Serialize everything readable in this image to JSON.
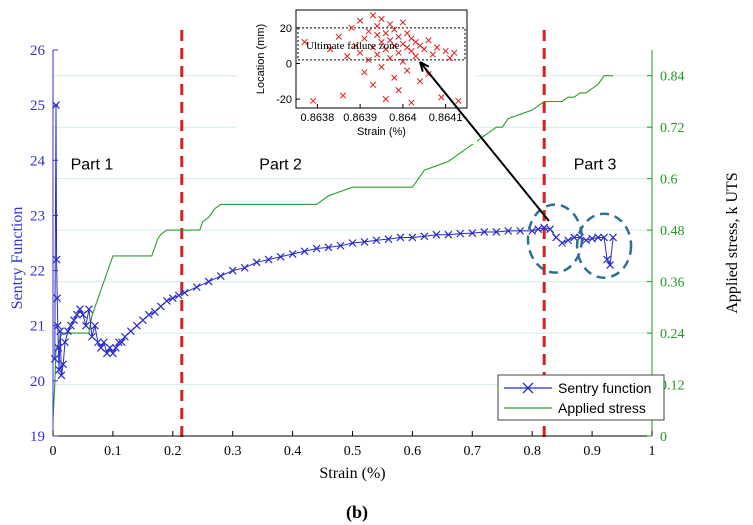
{
  "caption": "(b)",
  "chart_data": [
    {
      "type": "line",
      "xlabel": "Strain (%)",
      "ylabel": "Sentry Function",
      "y2label": "Applied  stress,  k UTS",
      "xlim": [
        0,
        1
      ],
      "ylim": [
        19,
        26
      ],
      "y2lim": [
        0,
        0.9
      ],
      "x_ticks": [
        0,
        0.1,
        0.2,
        0.3,
        0.4,
        0.5,
        0.6,
        0.7,
        0.8,
        0.9,
        1
      ],
      "x_tick_labels": [
        "0",
        "0.1",
        "0.2",
        "0.3",
        "0.4",
        "0.5",
        "0.6",
        "0.7",
        "0.8",
        "0.9",
        "1"
      ],
      "y_ticks": [
        19,
        20,
        21,
        22,
        23,
        24,
        25,
        26
      ],
      "y_tick_labels": [
        "19",
        "20",
        "21",
        "22",
        "23",
        "24",
        "25",
        "26"
      ],
      "y2_ticks": [
        0,
        0.12,
        0.24,
        0.36,
        0.48,
        0.6,
        0.72,
        0.84
      ],
      "y2_tick_labels": [
        "0",
        "0.12",
        "0.24",
        "0.36",
        "0.48",
        "0.6",
        "0.72",
        "0.84"
      ],
      "grid": "horizontal",
      "legend": "bottom-right",
      "part_labels": [
        "Part 1",
        "Part 2",
        "Part 3"
      ],
      "part_boundaries": [
        0.215,
        0.82
      ],
      "colors": {
        "sentry": "#2a2acc",
        "stress": "#2e9e2e",
        "boundary": "#d42020",
        "circle": "#2f6f8f",
        "axis_left": "#3333cc",
        "axis_right": "#1f9a1f"
      },
      "series": [
        {
          "name": "Sentry function",
          "axis": "left",
          "marker": "x",
          "x": [
            0.003,
            0.005,
            0.006,
            0.007,
            0.008,
            0.009,
            0.01,
            0.012,
            0.014,
            0.017,
            0.02,
            0.025,
            0.03,
            0.035,
            0.04,
            0.045,
            0.05,
            0.055,
            0.06,
            0.065,
            0.07,
            0.075,
            0.08,
            0.085,
            0.09,
            0.095,
            0.1,
            0.105,
            0.11,
            0.115,
            0.12,
            0.13,
            0.14,
            0.15,
            0.16,
            0.17,
            0.18,
            0.19,
            0.2,
            0.21,
            0.22,
            0.24,
            0.26,
            0.28,
            0.3,
            0.32,
            0.34,
            0.36,
            0.38,
            0.4,
            0.42,
            0.44,
            0.46,
            0.48,
            0.5,
            0.52,
            0.54,
            0.56,
            0.58,
            0.6,
            0.62,
            0.64,
            0.66,
            0.68,
            0.7,
            0.72,
            0.74,
            0.76,
            0.78,
            0.8,
            0.81,
            0.82,
            0.83,
            0.84,
            0.85,
            0.86,
            0.87,
            0.88,
            0.89,
            0.9,
            0.91,
            0.92,
            0.925,
            0.93,
            0.935
          ],
          "values": [
            20.4,
            25.0,
            22.2,
            21.5,
            21.0,
            20.6,
            20.2,
            20.9,
            20.1,
            20.3,
            20.7,
            20.9,
            21.0,
            21.1,
            21.2,
            21.3,
            21.2,
            21.0,
            21.3,
            20.8,
            21.0,
            20.7,
            20.6,
            20.7,
            20.5,
            20.6,
            20.5,
            20.6,
            20.7,
            20.7,
            20.8,
            20.9,
            21.0,
            21.1,
            21.2,
            21.25,
            21.35,
            21.45,
            21.5,
            21.55,
            21.6,
            21.7,
            21.8,
            21.9,
            22.0,
            22.05,
            22.15,
            22.2,
            22.25,
            22.3,
            22.35,
            22.4,
            22.42,
            22.45,
            22.5,
            22.52,
            22.55,
            22.57,
            22.6,
            22.6,
            22.62,
            22.65,
            22.65,
            22.67,
            22.68,
            22.7,
            22.7,
            22.72,
            22.72,
            22.72,
            22.75,
            22.78,
            22.75,
            22.6,
            22.5,
            22.55,
            22.6,
            22.6,
            22.55,
            22.58,
            22.6,
            22.6,
            22.2,
            22.1,
            22.6
          ]
        },
        {
          "name": "Applied stress",
          "axis": "right",
          "marker": "none",
          "x": [
            0.0,
            0.003,
            0.005,
            0.01,
            0.015,
            0.02,
            0.03,
            0.04,
            0.045,
            0.05,
            0.06,
            0.065,
            0.07,
            0.075,
            0.08,
            0.085,
            0.09,
            0.095,
            0.1,
            0.11,
            0.12,
            0.13,
            0.14,
            0.15,
            0.16,
            0.165,
            0.17,
            0.175,
            0.18,
            0.19,
            0.2,
            0.21,
            0.215,
            0.22,
            0.23,
            0.24,
            0.245,
            0.25,
            0.26,
            0.265,
            0.27,
            0.28,
            0.29,
            0.3,
            0.32,
            0.34,
            0.36,
            0.38,
            0.4,
            0.42,
            0.44,
            0.45,
            0.46,
            0.48,
            0.5,
            0.52,
            0.54,
            0.56,
            0.58,
            0.6,
            0.61,
            0.62,
            0.64,
            0.66,
            0.68,
            0.7,
            0.72,
            0.74,
            0.75,
            0.76,
            0.78,
            0.8,
            0.81,
            0.82,
            0.83,
            0.84,
            0.85,
            0.86,
            0.87,
            0.88,
            0.89,
            0.9,
            0.91,
            0.92,
            0.93,
            0.935
          ],
          "values": [
            0.04,
            0.12,
            0.2,
            0.22,
            0.24,
            0.24,
            0.24,
            0.24,
            0.24,
            0.24,
            0.24,
            0.28,
            0.3,
            0.32,
            0.34,
            0.36,
            0.38,
            0.4,
            0.42,
            0.42,
            0.42,
            0.42,
            0.42,
            0.42,
            0.42,
            0.42,
            0.44,
            0.46,
            0.47,
            0.48,
            0.48,
            0.48,
            0.48,
            0.48,
            0.48,
            0.48,
            0.48,
            0.5,
            0.51,
            0.52,
            0.53,
            0.54,
            0.54,
            0.54,
            0.54,
            0.54,
            0.54,
            0.54,
            0.54,
            0.54,
            0.54,
            0.55,
            0.56,
            0.57,
            0.58,
            0.58,
            0.58,
            0.58,
            0.58,
            0.58,
            0.6,
            0.62,
            0.63,
            0.64,
            0.66,
            0.68,
            0.7,
            0.72,
            0.72,
            0.74,
            0.75,
            0.76,
            0.77,
            0.78,
            0.78,
            0.78,
            0.78,
            0.79,
            0.79,
            0.8,
            0.8,
            0.81,
            0.82,
            0.84,
            0.84,
            0.84
          ]
        }
      ]
    },
    {
      "type": "scatter",
      "xlabel": "Strain (%)",
      "ylabel": "Location (mm)",
      "xlim": [
        0.86375,
        0.86415
      ],
      "ylim": [
        -25,
        30
      ],
      "x_ticks": [
        0.8638,
        0.8639,
        0.864,
        0.8641
      ],
      "x_tick_labels": [
        "0.8638",
        "0.8639",
        "0.864",
        "0.8641"
      ],
      "y_ticks": [
        -20,
        0,
        20
      ],
      "y_tick_labels": [
        "-20",
        "0",
        "20"
      ],
      "annotation": "Ultimate failure zone",
      "zone_ylim": [
        2,
        20
      ],
      "marker": "x",
      "color": "#e02020",
      "points": [
        [
          0.86377,
          12
        ],
        [
          0.86379,
          -21
        ],
        [
          0.86383,
          8
        ],
        [
          0.86385,
          15
        ],
        [
          0.86386,
          -18
        ],
        [
          0.86387,
          4
        ],
        [
          0.86388,
          20
        ],
        [
          0.86389,
          10
        ],
        [
          0.8639,
          24
        ],
        [
          0.8639,
          6
        ],
        [
          0.86391,
          -5
        ],
        [
          0.86391,
          14
        ],
        [
          0.86392,
          18
        ],
        [
          0.86392,
          2
        ],
        [
          0.86393,
          27
        ],
        [
          0.86393,
          9
        ],
        [
          0.86393,
          -12
        ],
        [
          0.86394,
          16
        ],
        [
          0.86394,
          5
        ],
        [
          0.86394,
          21
        ],
        [
          0.86395,
          12
        ],
        [
          0.86395,
          -2
        ],
        [
          0.86395,
          25
        ],
        [
          0.86396,
          8
        ],
        [
          0.86396,
          17
        ],
        [
          0.86396,
          -20
        ],
        [
          0.86397,
          13
        ],
        [
          0.86397,
          3
        ],
        [
          0.86397,
          22
        ],
        [
          0.86398,
          10
        ],
        [
          0.86398,
          -8
        ],
        [
          0.86398,
          19
        ],
        [
          0.86399,
          6
        ],
        [
          0.86399,
          15
        ],
        [
          0.86399,
          -15
        ],
        [
          0.864,
          11
        ],
        [
          0.864,
          1
        ],
        [
          0.864,
          23
        ],
        [
          0.86401,
          9
        ],
        [
          0.86401,
          -4
        ],
        [
          0.86401,
          17
        ],
        [
          0.86402,
          7
        ],
        [
          0.86402,
          14
        ],
        [
          0.86402,
          -22
        ],
        [
          0.86403,
          12
        ],
        [
          0.86403,
          4
        ],
        [
          0.86404,
          10
        ],
        [
          0.86404,
          -10
        ],
        [
          0.86405,
          8
        ],
        [
          0.86406,
          13
        ],
        [
          0.86406,
          -6
        ],
        [
          0.86407,
          5
        ],
        [
          0.86408,
          9
        ],
        [
          0.86409,
          -19
        ],
        [
          0.8641,
          7
        ],
        [
          0.86411,
          3
        ],
        [
          0.86412,
          6
        ],
        [
          0.86413,
          -21
        ]
      ]
    }
  ]
}
